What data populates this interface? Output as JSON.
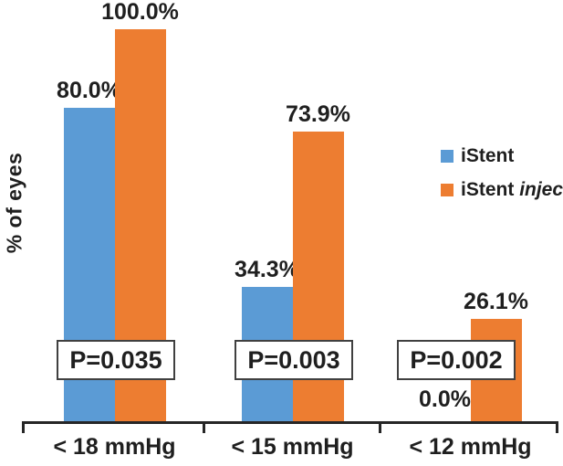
{
  "chart_data": {
    "type": "bar",
    "title": "",
    "xlabel": "",
    "ylabel": "% of eyes",
    "ylim": [
      0,
      100
    ],
    "grid": false,
    "legend_position": "middle-right",
    "categories": [
      "< 18 mmHg",
      "< 15 mmHg",
      "< 12 mmHg"
    ],
    "series": [
      {
        "name": "iStent",
        "legend_label": "iStent",
        "legend_label_italic": "",
        "color": "#5B9BD5",
        "values": [
          80.0,
          34.3,
          0.0
        ],
        "value_labels": [
          "80.0%",
          "34.3%",
          "0.0%"
        ]
      },
      {
        "name": "iStent inject",
        "legend_label": "iStent",
        "legend_label_italic": "inject",
        "color": "#ED7D31",
        "values": [
          100.0,
          73.9,
          26.1
        ],
        "value_labels": [
          "100.0%",
          "73.9%",
          "26.1%"
        ]
      }
    ],
    "annotations": {
      "p_values": [
        "P=0.035",
        "P=0.003",
        "P=0.002"
      ]
    }
  },
  "colors": {
    "istent": "#5B9BD5",
    "istent_inject": "#ED7D31",
    "text": "#1F1F1F",
    "axis": "#262626",
    "p_box_border": "#404040",
    "p_box_background": "#FFFFFF",
    "background": "#FFFFFF"
  }
}
